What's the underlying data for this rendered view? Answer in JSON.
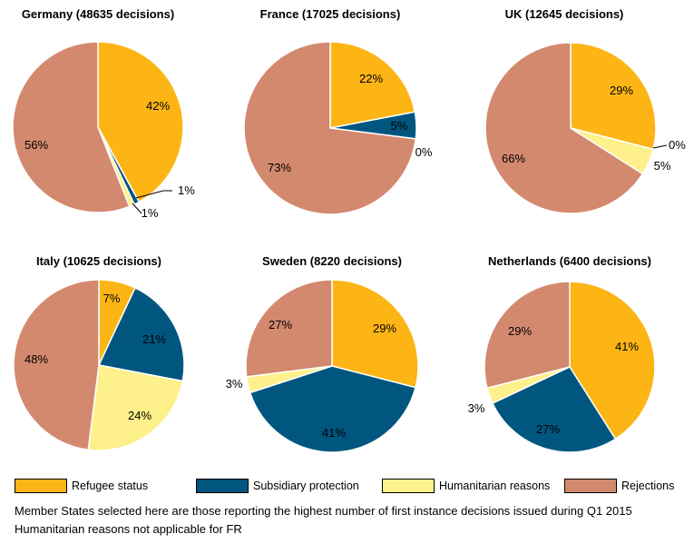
{
  "colors": {
    "refugee": "#FDB515",
    "subsidiary": "#00567F",
    "humanitarian": "#FEF08A",
    "rejections": "#D3896E"
  },
  "legend": [
    {
      "label": "Refugee status",
      "color": "#FDB515"
    },
    {
      "label": "Subsidiary protection",
      "color": "#00567F"
    },
    {
      "label": "Humanitarian reasons",
      "color": "#FEF08A"
    },
    {
      "label": "Rejections",
      "color": "#D3896E"
    }
  ],
  "notes": [
    "Member States selected here are those reporting the highest number of first instance decisions issued during Q1 2015",
    "Humanitarian reasons not applicable for FR"
  ],
  "chart_data": [
    {
      "type": "pie",
      "title": "Germany (48635  decisions)",
      "categories": [
        "Refugee status",
        "Subsidiary protection",
        "Humanitarian reasons",
        "Rejections"
      ],
      "values": [
        42,
        1,
        1,
        56
      ],
      "labels": [
        "42%",
        "1%",
        "1%",
        "56%"
      ]
    },
    {
      "type": "pie",
      "title": "France (17025 decisions)",
      "categories": [
        "Refugee status",
        "Subsidiary protection",
        "Humanitarian reasons",
        "Rejections"
      ],
      "values": [
        22,
        5,
        0,
        73
      ],
      "labels": [
        "22%",
        "5%",
        "0%",
        "73%"
      ]
    },
    {
      "type": "pie",
      "title": "UK (12645 decisions)",
      "categories": [
        "Refugee status",
        "Subsidiary protection",
        "Humanitarian reasons",
        "Rejections"
      ],
      "values": [
        29,
        0,
        5,
        66
      ],
      "labels": [
        "29%",
        "0%",
        "5%",
        "66%"
      ]
    },
    {
      "type": "pie",
      "title": "Italy (10625  decisions)",
      "categories": [
        "Refugee status",
        "Subsidiary protection",
        "Humanitarian reasons",
        "Rejections"
      ],
      "values": [
        7,
        21,
        24,
        48
      ],
      "labels": [
        "7%",
        "21%",
        "24%",
        "48%"
      ]
    },
    {
      "type": "pie",
      "title": "Sweden (8220 decisions)",
      "categories": [
        "Refugee status",
        "Subsidiary protection",
        "Humanitarian reasons",
        "Rejections"
      ],
      "values": [
        29,
        41,
        3,
        27
      ],
      "labels": [
        "29%",
        "41%",
        "3%",
        "27%"
      ]
    },
    {
      "type": "pie",
      "title": "Netherlands (6400 decisions)",
      "categories": [
        "Refugee status",
        "Subsidiary protection",
        "Humanitarian reasons",
        "Rejections"
      ],
      "values": [
        41,
        27,
        3,
        29
      ],
      "labels": [
        "41%",
        "27%",
        "3%",
        "29%"
      ]
    }
  ]
}
